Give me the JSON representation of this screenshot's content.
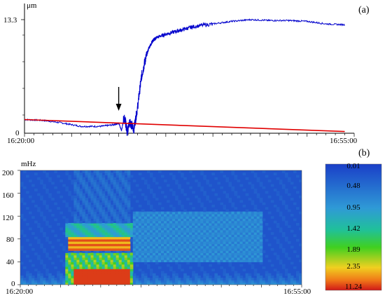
{
  "chart_data": [
    {
      "panel": "(a)",
      "type": "line",
      "unit": "μm",
      "yticks": [
        "13.3",
        "0"
      ],
      "xticks": [
        "16:20:00",
        "16:55:00"
      ],
      "xlim": [
        0,
        35
      ],
      "ylim": [
        0,
        13.3
      ],
      "annotation": "arrow",
      "annotation_x": 10.0,
      "series": [
        {
          "color": "#0000cc",
          "x": [
            0,
            2,
            4,
            6,
            8,
            9.5,
            10.0,
            10.3,
            10.6,
            10.9,
            11.2,
            11.6,
            12.0,
            12.4,
            12.8,
            13.2,
            13.6,
            14.0,
            15,
            16,
            17,
            18,
            20,
            22,
            24,
            26,
            28,
            30,
            32,
            34
          ],
          "y": [
            1.6,
            1.5,
            1.2,
            0.8,
            0.8,
            1.0,
            1.2,
            0.3,
            2.0,
            0.2,
            1.4,
            0.4,
            3.0,
            6.5,
            8.5,
            10.0,
            10.8,
            11.2,
            11.6,
            11.9,
            12.2,
            12.5,
            12.8,
            13.1,
            13.3,
            13.2,
            13.2,
            13.1,
            12.8,
            12.7
          ]
        },
        {
          "color": "#e00000",
          "x": [
            0,
            34
          ],
          "y": [
            1.6,
            0.2
          ]
        }
      ]
    },
    {
      "panel": "(b)",
      "type": "heatmap",
      "unit": "mHz",
      "yticks": [
        "200",
        "160",
        "120",
        "80",
        "40",
        "0"
      ],
      "xticks": [
        "16:20:00",
        "16:55:00"
      ],
      "xlim": [
        0,
        35
      ],
      "ylim": [
        0,
        200
      ],
      "colorbar": [
        "0.01",
        "0.48",
        "0.95",
        "1.42",
        "1.89",
        "2.35",
        "11.24"
      ]
    }
  ]
}
